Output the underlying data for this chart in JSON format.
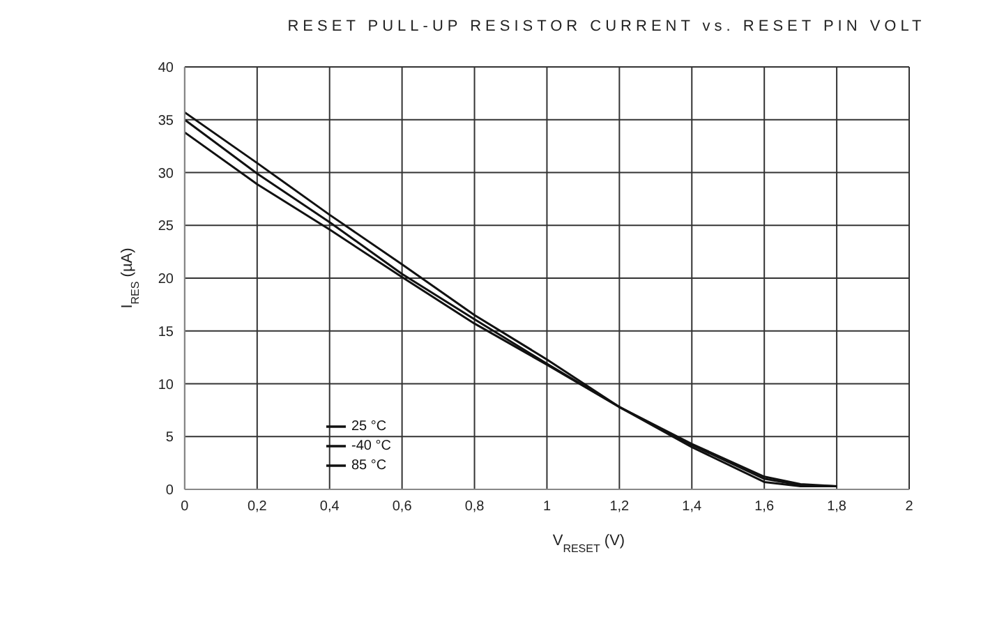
{
  "chart_data": {
    "type": "line",
    "title": "RESET PULL-UP RESISTOR CURRENT vs. RESET PIN VOLT",
    "xlabel": "V$_{RESET}$ (V)",
    "ylabel": "I$_{RES}$ (µA)",
    "x": [
      0,
      0.2,
      0.4,
      0.6,
      0.8,
      1.0,
      1.2,
      1.4,
      1.6,
      1.7,
      1.8
    ],
    "series": [
      {
        "name": "25 °C",
        "color": "#111111",
        "values": [
          35.0,
          29.9,
          25.3,
          20.4,
          16.1,
          11.9,
          7.8,
          4.2,
          1.0,
          0.4,
          0.3
        ]
      },
      {
        "name": "-40 °C",
        "color": "#111111",
        "values": [
          35.7,
          30.9,
          26.0,
          21.3,
          16.5,
          12.3,
          7.8,
          4.3,
          1.2,
          0.5,
          0.3
        ]
      },
      {
        "name": "85 °C",
        "color": "#111111",
        "values": [
          33.8,
          28.9,
          24.6,
          20.1,
          15.7,
          11.8,
          7.8,
          4.0,
          0.7,
          0.3,
          0.3
        ]
      }
    ],
    "xlim": [
      0,
      2
    ],
    "xticks": [
      0,
      {
        "value": 0.2,
        "label": "0,2"
      },
      {
        "value": 0.4,
        "label": "0,4"
      },
      {
        "value": 0.6,
        "label": "0,6"
      },
      {
        "value": 0.8,
        "label": "0,8"
      },
      1,
      {
        "value": 1.2,
        "label": "1,2"
      },
      {
        "value": 1.4,
        "label": "1,4"
      },
      {
        "value": 1.6,
        "label": "1,6"
      },
      {
        "value": 1.8,
        "label": "1,8"
      },
      2
    ],
    "ylim": [
      0,
      40
    ],
    "yticks": [
      0,
      5,
      10,
      15,
      20,
      25,
      30,
      35,
      40
    ],
    "grid": true,
    "legend": "bottom",
    "marker": "none",
    "line_style": "solid"
  }
}
